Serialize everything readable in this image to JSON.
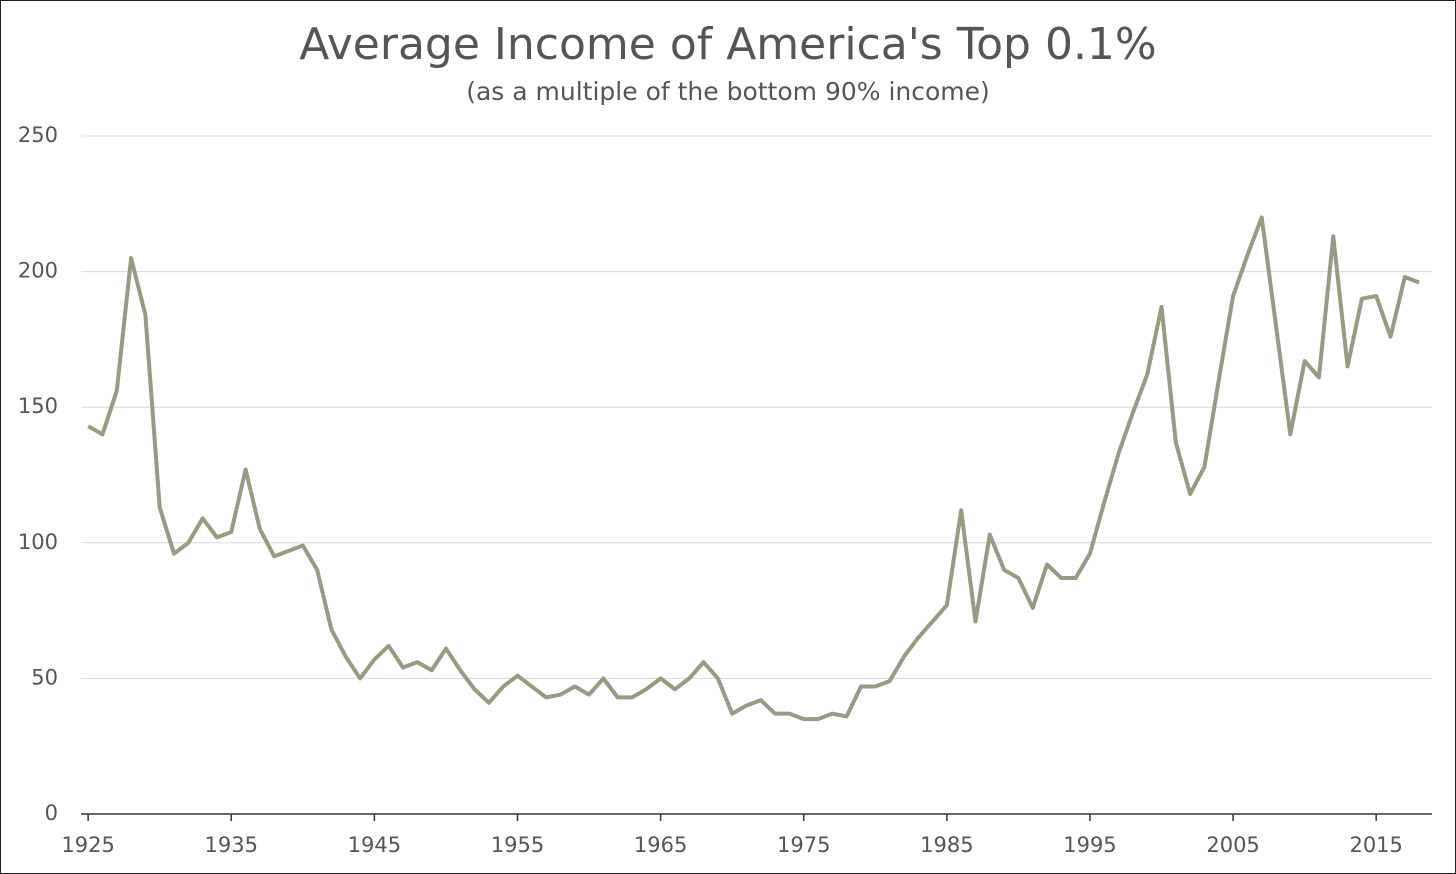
{
  "chart_data": {
    "type": "line",
    "title": "Average Income of America's Top 0.1%",
    "subtitle": "(as a multiple of the bottom 90% income)",
    "x": [
      1925,
      1926,
      1927,
      1928,
      1929,
      1930,
      1931,
      1932,
      1933,
      1934,
      1935,
      1936,
      1937,
      1938,
      1939,
      1940,
      1941,
      1942,
      1943,
      1944,
      1945,
      1946,
      1947,
      1948,
      1949,
      1950,
      1951,
      1952,
      1953,
      1954,
      1955,
      1956,
      1957,
      1958,
      1959,
      1960,
      1961,
      1962,
      1963,
      1964,
      1965,
      1966,
      1967,
      1968,
      1969,
      1970,
      1971,
      1972,
      1973,
      1974,
      1975,
      1976,
      1977,
      1978,
      1979,
      1980,
      1981,
      1982,
      1983,
      1984,
      1985,
      1986,
      1987,
      1988,
      1989,
      1990,
      1991,
      1992,
      1993,
      1994,
      1995,
      1996,
      1997,
      1998,
      1999,
      2000,
      2001,
      2002,
      2003,
      2004,
      2005,
      2006,
      2007,
      2008,
      2009,
      2010,
      2011,
      2012,
      2013,
      2014,
      2015,
      2016,
      2017,
      2018
    ],
    "series": [
      {
        "color": "#949c82",
        "values": [
          143,
          140,
          156,
          205,
          184,
          113,
          96,
          100,
          109,
          102,
          104,
          127,
          105,
          95,
          97,
          99,
          90,
          68,
          58,
          50,
          57,
          62,
          54,
          56,
          53,
          61,
          53,
          46,
          41,
          47,
          51,
          47,
          43,
          44,
          47,
          44,
          50,
          43,
          43,
          46,
          50,
          46,
          50,
          56,
          50,
          37,
          40,
          42,
          37,
          37,
          35,
          35,
          37,
          36,
          47,
          47,
          49,
          58,
          65,
          71,
          77,
          112,
          71,
          103,
          90,
          87,
          76,
          92,
          87,
          87,
          96,
          115,
          133,
          148,
          162,
          187,
          137,
          118,
          128,
          160,
          191,
          206,
          220,
          180,
          140,
          167,
          161,
          213,
          165,
          190,
          191,
          176,
          198,
          196
        ]
      }
    ],
    "xlim": [
      1924.5,
      2018.9
    ],
    "xticks": [
      1925,
      1935,
      1945,
      1955,
      1965,
      1975,
      1985,
      1995,
      2005,
      2015
    ],
    "ylim": [
      0,
      250
    ],
    "yticks": [
      0,
      50,
      100,
      150,
      200,
      250
    ],
    "grid": true
  }
}
